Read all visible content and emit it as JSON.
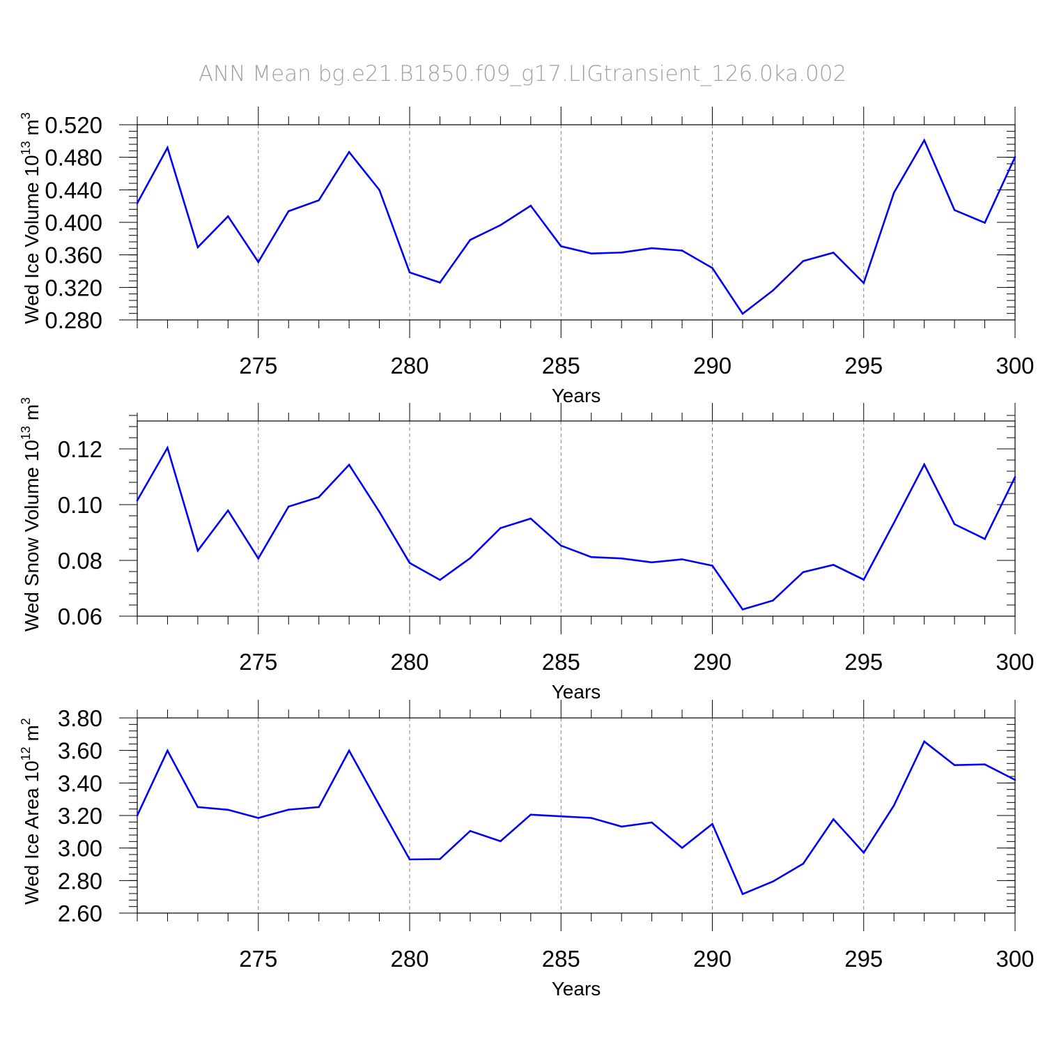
{
  "title": "ANN Mean bg.e21.B1850.f09_g17.LIGtransient_126.0ka.002",
  "colors": {
    "line": "#0000ff",
    "axis": "#000000",
    "grid": "#808080",
    "title": "#a0a0a0",
    "background": "#ffffff"
  },
  "chart_data": [
    {
      "type": "line",
      "ylabel": "Wed Ice Volume",
      "ylabel_unit_base": "10",
      "ylabel_unit_exp": "13",
      "ylabel_unit_m": "m",
      "ylabel_unit_mexp": "3",
      "xlabel": "Years",
      "xlim": [
        271,
        300
      ],
      "ylim": [
        0.28,
        0.52
      ],
      "xticks": [
        275,
        280,
        285,
        290,
        295,
        300
      ],
      "xtick_labels": [
        "275",
        "280",
        "285",
        "290",
        "295",
        "300"
      ],
      "yticks": [
        0.28,
        0.32,
        0.36,
        0.4,
        0.44,
        0.48,
        0.52
      ],
      "ytick_labels": [
        "0.280",
        "0.320",
        "0.360",
        "0.400",
        "0.440",
        "0.480",
        "0.520"
      ],
      "y_minor_step": 0.008,
      "grid": "vertical dashed at major x ticks",
      "x": [
        271,
        272,
        273,
        274,
        275,
        276,
        277,
        278,
        279,
        280,
        281,
        282,
        283,
        284,
        285,
        286,
        287,
        288,
        289,
        290,
        291,
        292,
        293,
        294,
        295,
        296,
        297,
        298,
        299,
        300
      ],
      "values": [
        0.4236,
        0.4918,
        0.3693,
        0.4075,
        0.3512,
        0.4137,
        0.4272,
        0.4865,
        0.4398,
        0.3385,
        0.3259,
        0.3784,
        0.3966,
        0.4205,
        0.3706,
        0.3617,
        0.3629,
        0.3682,
        0.3653,
        0.3439,
        0.2876,
        0.3162,
        0.3524,
        0.3627,
        0.3254,
        0.4365,
        0.501,
        0.4151,
        0.3995,
        0.4804
      ]
    },
    {
      "type": "line",
      "ylabel": "Wed Snow Volume",
      "ylabel_unit_base": "10",
      "ylabel_unit_exp": "13",
      "ylabel_unit_m": "m",
      "ylabel_unit_mexp": "3",
      "xlabel": "Years",
      "xlim": [
        271,
        300
      ],
      "ylim": [
        0.06,
        0.13
      ],
      "xticks": [
        275,
        280,
        285,
        290,
        295,
        300
      ],
      "xtick_labels": [
        "275",
        "280",
        "285",
        "290",
        "295",
        "300"
      ],
      "yticks": [
        0.06,
        0.08,
        0.1,
        0.12
      ],
      "ytick_labels": [
        "0.06",
        "0.08",
        "0.10",
        "0.12"
      ],
      "y_minor_step": 0.004,
      "grid": "vertical dashed at major x ticks",
      "x": [
        271,
        272,
        273,
        274,
        275,
        276,
        277,
        278,
        279,
        280,
        281,
        282,
        283,
        284,
        285,
        286,
        287,
        288,
        289,
        290,
        291,
        292,
        293,
        294,
        295,
        296,
        297,
        298,
        299,
        300
      ],
      "values": [
        0.1015,
        0.1204,
        0.0835,
        0.0979,
        0.0807,
        0.0993,
        0.1027,
        0.1143,
        0.0974,
        0.0791,
        0.073,
        0.0808,
        0.0916,
        0.095,
        0.0853,
        0.0812,
        0.0807,
        0.0793,
        0.0804,
        0.0781,
        0.0624,
        0.0656,
        0.0758,
        0.0784,
        0.0731,
        0.0935,
        0.1144,
        0.093,
        0.0877,
        0.1099
      ]
    },
    {
      "type": "line",
      "ylabel": "Wed Ice Area",
      "ylabel_unit_base": "10",
      "ylabel_unit_exp": "12",
      "ylabel_unit_m": "m",
      "ylabel_unit_mexp": "2",
      "xlabel": "Years",
      "xlim": [
        271,
        300
      ],
      "ylim": [
        2.6,
        3.8
      ],
      "xticks": [
        275,
        280,
        285,
        290,
        295,
        300
      ],
      "xtick_labels": [
        "275",
        "280",
        "285",
        "290",
        "295",
        "300"
      ],
      "yticks": [
        2.6,
        2.8,
        3.0,
        3.2,
        3.4,
        3.6,
        3.8
      ],
      "ytick_labels": [
        "2.60",
        "2.80",
        "3.00",
        "3.20",
        "3.40",
        "3.60",
        "3.80"
      ],
      "y_minor_step": 0.04,
      "grid": "vertical dashed at major x ticks",
      "x": [
        271,
        272,
        273,
        274,
        275,
        276,
        277,
        278,
        279,
        280,
        281,
        282,
        283,
        284,
        285,
        286,
        287,
        288,
        289,
        290,
        291,
        292,
        293,
        294,
        295,
        296,
        297,
        298,
        299,
        300
      ],
      "values": [
        3.2,
        3.599,
        3.252,
        3.235,
        3.185,
        3.236,
        3.252,
        3.599,
        3.262,
        2.93,
        2.932,
        3.105,
        3.042,
        3.205,
        3.195,
        3.185,
        3.132,
        3.157,
        3.001,
        3.148,
        2.717,
        2.794,
        2.904,
        3.177,
        2.971,
        3.262,
        3.655,
        3.51,
        3.514,
        3.419
      ]
    }
  ]
}
